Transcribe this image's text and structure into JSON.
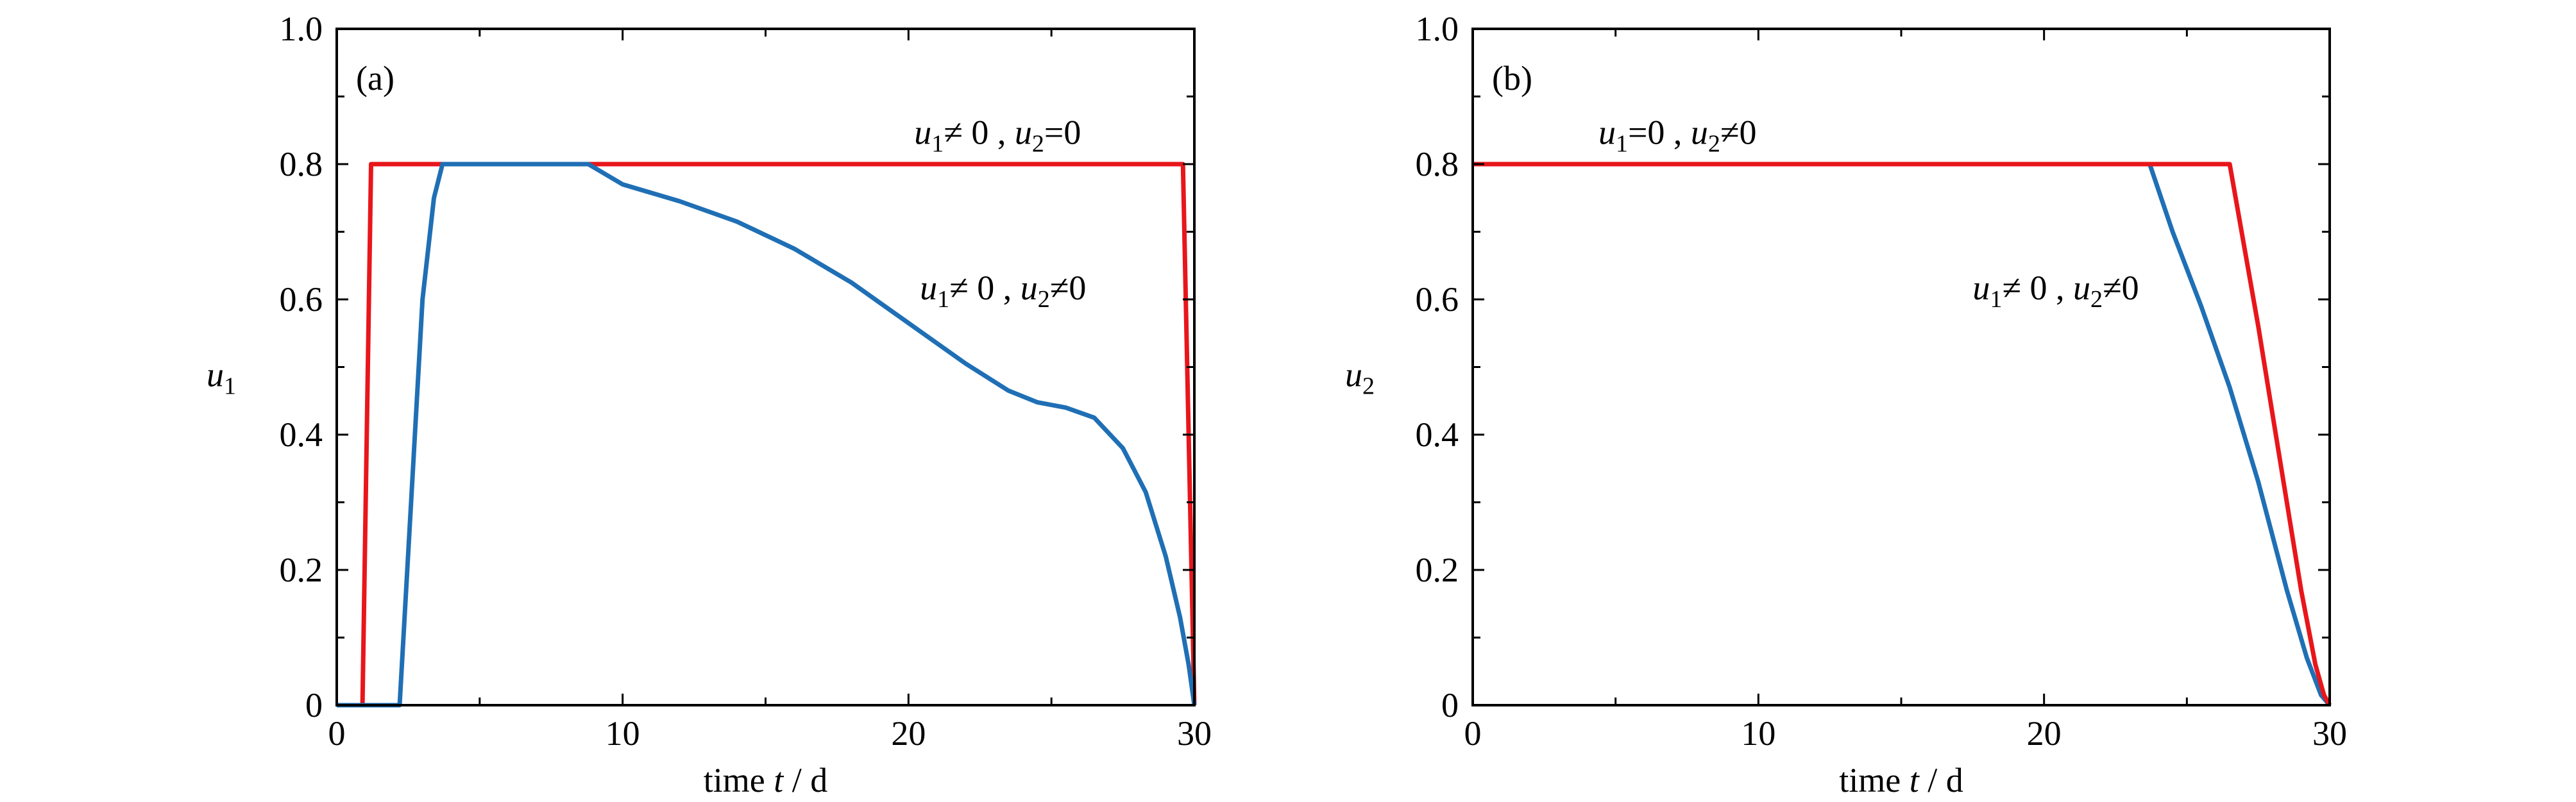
{
  "chart_data": [
    {
      "type": "line",
      "panel_label": "(a)",
      "xlabel": {
        "prefix": "time ",
        "var": "t",
        "suffix": " / d"
      },
      "ylabel": {
        "var": "u",
        "sub": "1"
      },
      "xlim": [
        0,
        30
      ],
      "ylim": [
        0,
        1.0
      ],
      "xticks": [
        0,
        10,
        20,
        30
      ],
      "xtick_labels": [
        "0",
        "10",
        "20",
        "30"
      ],
      "yticks": [
        0,
        0.2,
        0.4,
        0.6,
        0.8,
        1.0
      ],
      "ytick_labels": [
        "0",
        "0.2",
        "0.4",
        "0.6",
        "0.8",
        "1.0"
      ],
      "grid": false,
      "series": [
        {
          "color": "#e8161b",
          "x": [
            0,
            0.9,
            1.2,
            29.6,
            30
          ],
          "y": [
            0,
            0,
            0.8,
            0.8,
            0
          ]
        },
        {
          "color": "#1f6fb5",
          "x": [
            0,
            2.2,
            2.6,
            3.0,
            3.4,
            3.7,
            8.8,
            10,
            12,
            14,
            16,
            18,
            20,
            22,
            23.5,
            24.5,
            25.5,
            26.5,
            27.5,
            28.3,
            29,
            29.5,
            29.8,
            30
          ],
          "y": [
            0,
            0,
            0.3,
            0.6,
            0.75,
            0.8,
            0.8,
            0.77,
            0.745,
            0.715,
            0.675,
            0.625,
            0.565,
            0.505,
            0.465,
            0.448,
            0.44,
            0.425,
            0.38,
            0.315,
            0.22,
            0.13,
            0.06,
            0
          ]
        }
      ],
      "annotations": [
        {
          "parts": [
            {
              "t": "u",
              "i": true
            },
            {
              "t": "1",
              "sub": true
            },
            {
              "t": "≠ 0 , "
            },
            {
              "t": "u",
              "i": true
            },
            {
              "t": "2",
              "sub": true
            },
            {
              "t": "=0"
            }
          ],
          "x": 20.2,
          "y": 0.83
        },
        {
          "parts": [
            {
              "t": "u",
              "i": true
            },
            {
              "t": "1",
              "sub": true
            },
            {
              "t": "≠ 0 , "
            },
            {
              "t": "u",
              "i": true
            },
            {
              "t": "2",
              "sub": true
            },
            {
              "t": "≠0"
            }
          ],
          "x": 20.4,
          "y": 0.6
        }
      ]
    },
    {
      "type": "line",
      "panel_label": "(b)",
      "xlabel": {
        "prefix": "time ",
        "var": "t",
        "suffix": " / d"
      },
      "ylabel": {
        "var": "u",
        "sub": "2"
      },
      "xlim": [
        0,
        30
      ],
      "ylim": [
        0,
        1.0
      ],
      "xticks": [
        0,
        10,
        20,
        30
      ],
      "xtick_labels": [
        "0",
        "10",
        "20",
        "30"
      ],
      "yticks": [
        0,
        0.2,
        0.4,
        0.6,
        0.8,
        1.0
      ],
      "ytick_labels": [
        "0",
        "0.2",
        "0.4",
        "0.6",
        "0.8",
        "1.0"
      ],
      "grid": false,
      "series": [
        {
          "color": "#1f6fb5",
          "x": [
            23.7,
            24.5,
            25.5,
            26.5,
            27.5,
            28.5,
            29.2,
            29.7,
            30
          ],
          "y": [
            0.8,
            0.7,
            0.59,
            0.47,
            0.33,
            0.17,
            0.07,
            0.015,
            0
          ]
        },
        {
          "color": "#e8161b",
          "x": [
            0,
            26.5,
            27,
            27.5,
            28,
            28.5,
            29,
            29.5,
            29.8,
            30
          ],
          "y": [
            0.8,
            0.8,
            0.68,
            0.56,
            0.43,
            0.3,
            0.17,
            0.06,
            0.015,
            0
          ]
        }
      ],
      "annotations": [
        {
          "parts": [
            {
              "t": "u",
              "i": true
            },
            {
              "t": "1",
              "sub": true
            },
            {
              "t": "=0 , "
            },
            {
              "t": "u",
              "i": true
            },
            {
              "t": "2",
              "sub": true
            },
            {
              "t": "≠0"
            }
          ],
          "x": 4.4,
          "y": 0.83
        },
        {
          "parts": [
            {
              "t": "u",
              "i": true
            },
            {
              "t": "1",
              "sub": true
            },
            {
              "t": "≠ 0 , "
            },
            {
              "t": "u",
              "i": true
            },
            {
              "t": "2",
              "sub": true
            },
            {
              "t": "≠0"
            }
          ],
          "x": 17.5,
          "y": 0.6
        }
      ]
    }
  ]
}
